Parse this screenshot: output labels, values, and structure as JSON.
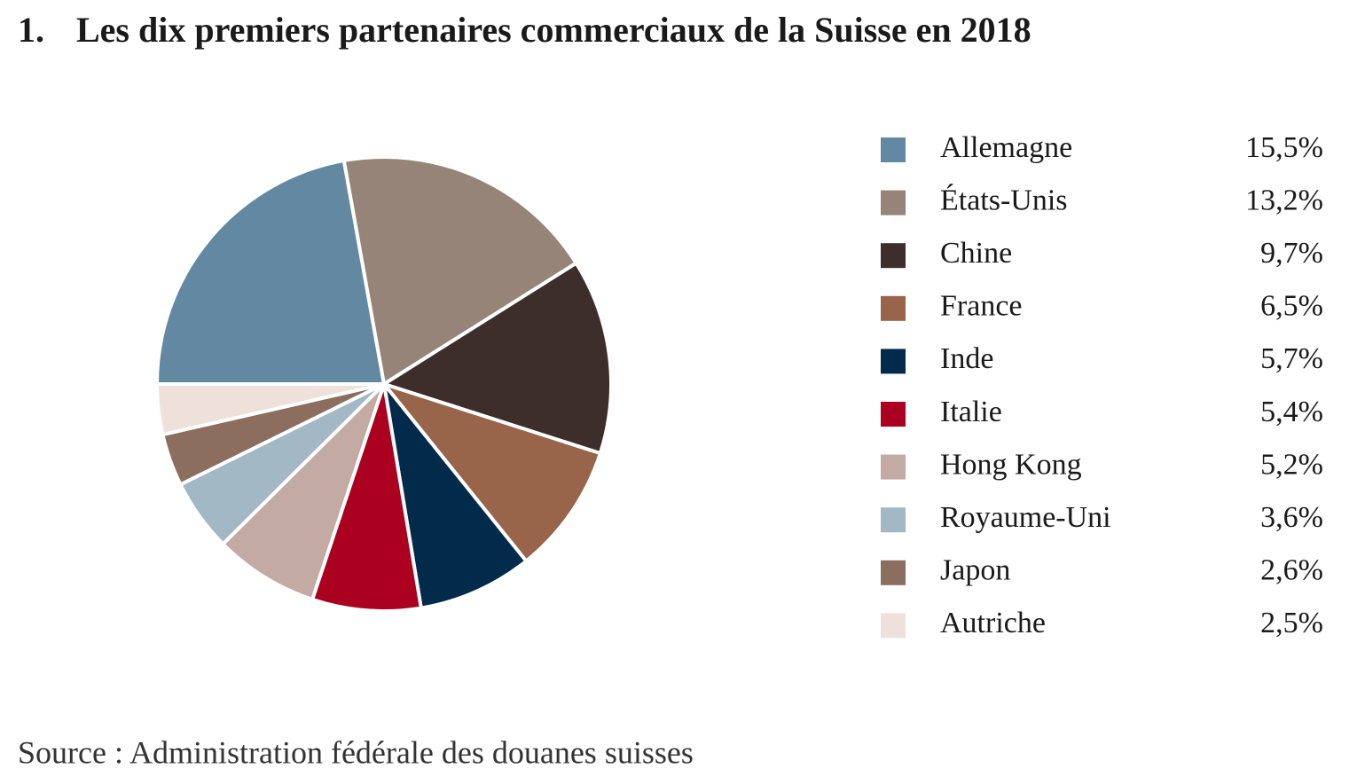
{
  "chart_data": {
    "type": "pie",
    "title_number": "1.",
    "title": "Les dix premiers partenaires commerciaux de la Suisse en 2018",
    "source": "Source : Administration fédérale des douanes suisses",
    "categories": [
      "Allemagne",
      "États-Unis",
      "Chine",
      "France",
      "Inde",
      "Italie",
      "Hong Kong",
      "Royaume-Uni",
      "Japon",
      "Autriche"
    ],
    "values": [
      15.5,
      13.2,
      9.7,
      6.5,
      5.7,
      5.4,
      5.2,
      3.6,
      2.6,
      2.5
    ],
    "value_labels": [
      "15,5%",
      "13,2%",
      "9,7%",
      "6,5%",
      "5,7%",
      "5,4%",
      "5,2%",
      "3,6%",
      "2,6%",
      "2,5%"
    ],
    "colors": [
      "#6389a2",
      "#968478",
      "#3e2e2b",
      "#98644a",
      "#022a4b",
      "#ab0020",
      "#c3aaa3",
      "#a2b8c5",
      "#8c6e5e",
      "#eee0da"
    ]
  }
}
